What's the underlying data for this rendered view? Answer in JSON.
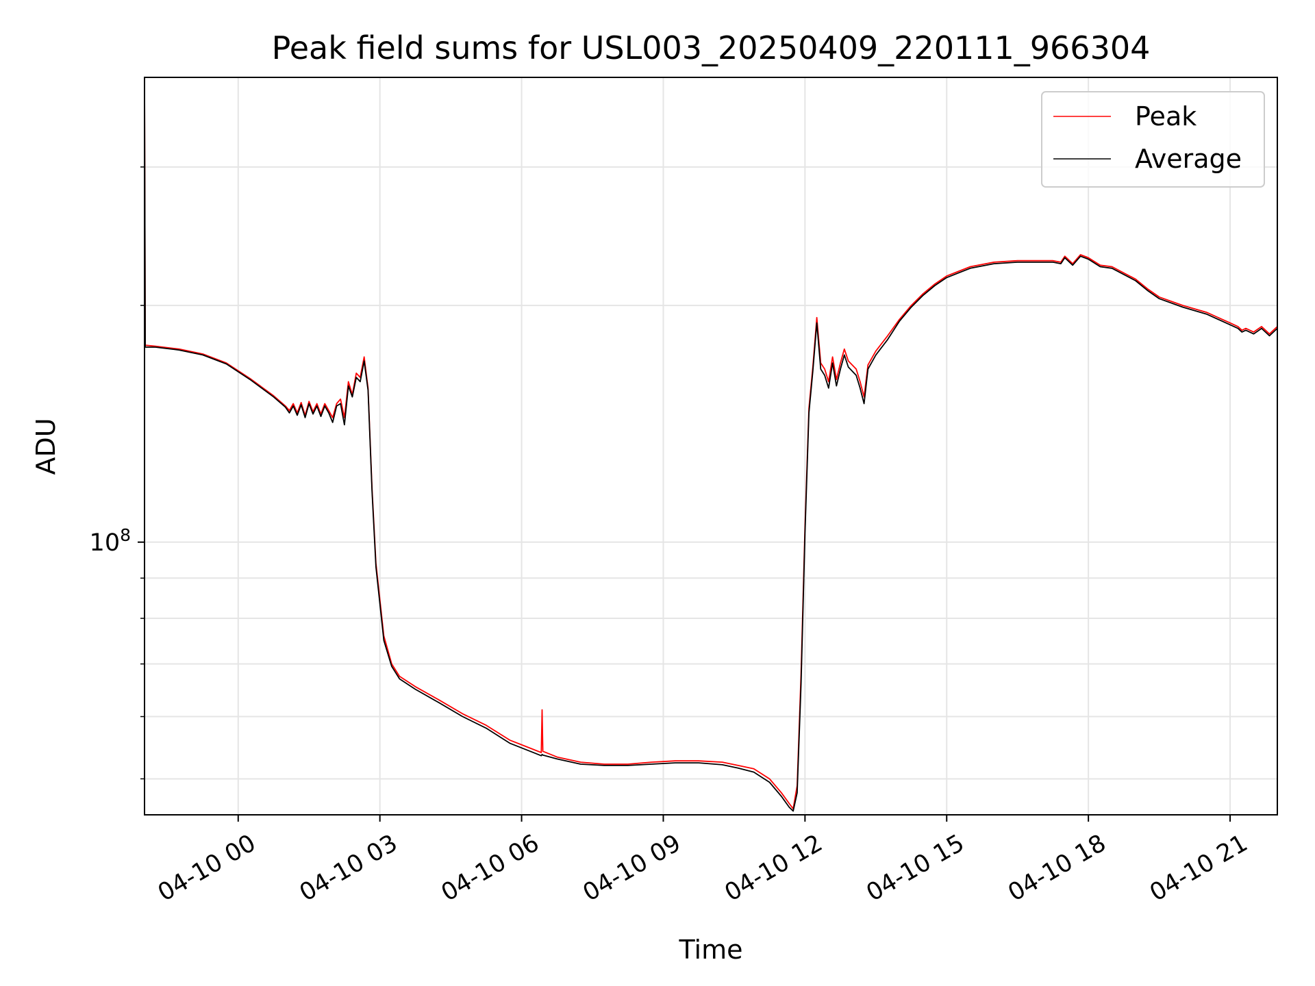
{
  "chart_data": {
    "type": "line",
    "title": "Peak field sums for USL003_20250409_220111_966304",
    "xlabel": "Time",
    "ylabel": "ADU",
    "yscale": "log",
    "grid": true,
    "legend": {
      "placement": "upper-right",
      "entries": [
        "Peak",
        "Average"
      ]
    },
    "xlim": [
      "2025-04-09 22:01",
      "2025-04-10 22:00"
    ],
    "ylim": [
      45000000.0,
      390000000.0
    ],
    "x_ticks": [
      "04-10 00",
      "04-10 03",
      "04-10 06",
      "04-10 09",
      "04-10 12",
      "04-10 15",
      "04-10 18",
      "04-10 21"
    ],
    "y_ticks": [
      {
        "value": 100000000.0,
        "base": "10",
        "exponent": "8"
      }
    ],
    "colors": {
      "Peak": "#ff0000",
      "Average": "#000000"
    },
    "series": [
      {
        "name": "Peak",
        "color": "#ff0000",
        "x": [
          "2025-04-09 22:01",
          "2025-04-09 22:02",
          "2025-04-09 22:15",
          "2025-04-09 22:45",
          "2025-04-09 23:15",
          "2025-04-09 23:45",
          "2025-04-10 00:15",
          "2025-04-10 00:45",
          "2025-04-10 01:00",
          "2025-04-10 01:05",
          "2025-04-10 01:10",
          "2025-04-10 01:15",
          "2025-04-10 01:20",
          "2025-04-10 01:25",
          "2025-04-10 01:30",
          "2025-04-10 01:35",
          "2025-04-10 01:40",
          "2025-04-10 01:45",
          "2025-04-10 01:50",
          "2025-04-10 01:55",
          "2025-04-10 02:00",
          "2025-04-10 02:05",
          "2025-04-10 02:10",
          "2025-04-10 02:15",
          "2025-04-10 02:20",
          "2025-04-10 02:25",
          "2025-04-10 02:30",
          "2025-04-10 02:35",
          "2025-04-10 02:40",
          "2025-04-10 02:45",
          "2025-04-10 02:50",
          "2025-04-10 02:55",
          "2025-04-10 03:05",
          "2025-04-10 03:15",
          "2025-04-10 03:25",
          "2025-04-10 03:45",
          "2025-04-10 04:15",
          "2025-04-10 04:45",
          "2025-04-10 05:15",
          "2025-04-10 05:45",
          "2025-04-10 06:15",
          "2025-04-10 06:25",
          "2025-04-10 06:26",
          "2025-04-10 06:27",
          "2025-04-10 06:45",
          "2025-04-10 07:15",
          "2025-04-10 07:45",
          "2025-04-10 08:15",
          "2025-04-10 08:45",
          "2025-04-10 09:15",
          "2025-04-10 09:45",
          "2025-04-10 10:15",
          "2025-04-10 10:35",
          "2025-04-10 10:55",
          "2025-04-10 11:15",
          "2025-04-10 11:30",
          "2025-04-10 11:40",
          "2025-04-10 11:45",
          "2025-04-10 11:50",
          "2025-04-10 11:55",
          "2025-04-10 12:00",
          "2025-04-10 12:05",
          "2025-04-10 12:10",
          "2025-04-10 12:15",
          "2025-04-10 12:20",
          "2025-04-10 12:25",
          "2025-04-10 12:30",
          "2025-04-10 12:35",
          "2025-04-10 12:40",
          "2025-04-10 12:45",
          "2025-04-10 12:50",
          "2025-04-10 12:55",
          "2025-04-10 13:00",
          "2025-04-10 13:05",
          "2025-04-10 13:10",
          "2025-04-10 13:15",
          "2025-04-10 13:20",
          "2025-04-10 13:30",
          "2025-04-10 13:45",
          "2025-04-10 14:00",
          "2025-04-10 14:15",
          "2025-04-10 14:30",
          "2025-04-10 14:45",
          "2025-04-10 15:00",
          "2025-04-10 15:30",
          "2025-04-10 16:00",
          "2025-04-10 16:30",
          "2025-04-10 17:00",
          "2025-04-10 17:15",
          "2025-04-10 17:25",
          "2025-04-10 17:30",
          "2025-04-10 17:40",
          "2025-04-10 17:50",
          "2025-04-10 18:00",
          "2025-04-10 18:15",
          "2025-04-10 18:30",
          "2025-04-10 19:00",
          "2025-04-10 19:15",
          "2025-04-10 19:30",
          "2025-04-10 20:00",
          "2025-04-10 20:30",
          "2025-04-10 21:00",
          "2025-04-10 21:10",
          "2025-04-10 21:15",
          "2025-04-10 21:20",
          "2025-04-10 21:30",
          "2025-04-10 21:40",
          "2025-04-10 21:50",
          "2025-04-10 22:00"
        ],
        "values": [
          390000000.0,
          178000000.0,
          177500000.0,
          176000000.0,
          173500000.0,
          169000000.0,
          161500000.0,
          153500000.0,
          149000000.0,
          147000000.0,
          150000000.0,
          146000000.0,
          150500000.0,
          145000000.0,
          151000000.0,
          146500000.0,
          150000000.0,
          145500000.0,
          150000000.0,
          147000000.0,
          144000000.0,
          150000000.0,
          152000000.0,
          144000000.0,
          160000000.0,
          154000000.0,
          164000000.0,
          162000000.0,
          172000000.0,
          157000000.0,
          117000000.0,
          94000000.0,
          76000000.0,
          70000000.0,
          67500000.0,
          65500000.0,
          63000000.0,
          60500000.0,
          58500000.0,
          56000000.0,
          54500000.0,
          54000000.0,
          61200000.0,
          54200000.0,
          53300000.0,
          52500000.0,
          52200000.0,
          52200000.0,
          52500000.0,
          52700000.0,
          52700000.0,
          52500000.0,
          52000000.0,
          51500000.0,
          50000000.0,
          48000000.0,
          46500000.0,
          45800000.0,
          49000000.0,
          68000000.0,
          105000000.0,
          148000000.0,
          167000000.0,
          193000000.0,
          169000000.0,
          166000000.0,
          160000000.0,
          172000000.0,
          161000000.0,
          169000000.0,
          176000000.0,
          170000000.0,
          168000000.0,
          166000000.0,
          160000000.0,
          153000000.0,
          168000000.0,
          175000000.0,
          183000000.0,
          192000000.0,
          200000000.0,
          207000000.0,
          213000000.0,
          218000000.0,
          224000000.0,
          227000000.0,
          228000000.0,
          228000000.0,
          228000000.0,
          227000000.0,
          231000000.0,
          226000000.0,
          232000000.0,
          230000000.0,
          225000000.0,
          224000000.0,
          216000000.0,
          210000000.0,
          205000000.0,
          200000000.0,
          196000000.0,
          190000000.0,
          188000000.0,
          186000000.0,
          187000000.0,
          185000000.0,
          188000000.0,
          184000000.0,
          188000000.0
        ]
      },
      {
        "name": "Average",
        "color": "#000000",
        "x": [
          "2025-04-09 22:01",
          "2025-04-09 22:02",
          "2025-04-09 22:15",
          "2025-04-09 22:45",
          "2025-04-09 23:15",
          "2025-04-09 23:45",
          "2025-04-10 00:15",
          "2025-04-10 00:45",
          "2025-04-10 01:00",
          "2025-04-10 01:05",
          "2025-04-10 01:10",
          "2025-04-10 01:15",
          "2025-04-10 01:20",
          "2025-04-10 01:25",
          "2025-04-10 01:30",
          "2025-04-10 01:35",
          "2025-04-10 01:40",
          "2025-04-10 01:45",
          "2025-04-10 01:50",
          "2025-04-10 01:55",
          "2025-04-10 02:00",
          "2025-04-10 02:05",
          "2025-04-10 02:10",
          "2025-04-10 02:15",
          "2025-04-10 02:20",
          "2025-04-10 02:25",
          "2025-04-10 02:30",
          "2025-04-10 02:35",
          "2025-04-10 02:40",
          "2025-04-10 02:45",
          "2025-04-10 02:50",
          "2025-04-10 02:55",
          "2025-04-10 03:05",
          "2025-04-10 03:15",
          "2025-04-10 03:25",
          "2025-04-10 03:45",
          "2025-04-10 04:15",
          "2025-04-10 04:45",
          "2025-04-10 05:15",
          "2025-04-10 05:45",
          "2025-04-10 06:15",
          "2025-04-10 06:25",
          "2025-04-10 06:26",
          "2025-04-10 06:27",
          "2025-04-10 06:45",
          "2025-04-10 07:15",
          "2025-04-10 07:45",
          "2025-04-10 08:15",
          "2025-04-10 08:45",
          "2025-04-10 09:15",
          "2025-04-10 09:45",
          "2025-04-10 10:15",
          "2025-04-10 10:35",
          "2025-04-10 10:55",
          "2025-04-10 11:15",
          "2025-04-10 11:30",
          "2025-04-10 11:40",
          "2025-04-10 11:45",
          "2025-04-10 11:50",
          "2025-04-10 11:55",
          "2025-04-10 12:00",
          "2025-04-10 12:05",
          "2025-04-10 12:10",
          "2025-04-10 12:15",
          "2025-04-10 12:20",
          "2025-04-10 12:25",
          "2025-04-10 12:30",
          "2025-04-10 12:35",
          "2025-04-10 12:40",
          "2025-04-10 12:45",
          "2025-04-10 12:50",
          "2025-04-10 12:55",
          "2025-04-10 13:00",
          "2025-04-10 13:05",
          "2025-04-10 13:10",
          "2025-04-10 13:15",
          "2025-04-10 13:20",
          "2025-04-10 13:30",
          "2025-04-10 13:45",
          "2025-04-10 14:00",
          "2025-04-10 14:15",
          "2025-04-10 14:30",
          "2025-04-10 14:45",
          "2025-04-10 15:00",
          "2025-04-10 15:30",
          "2025-04-10 16:00",
          "2025-04-10 16:30",
          "2025-04-10 17:00",
          "2025-04-10 17:15",
          "2025-04-10 17:25",
          "2025-04-10 17:30",
          "2025-04-10 17:40",
          "2025-04-10 17:50",
          "2025-04-10 18:00",
          "2025-04-10 18:15",
          "2025-04-10 18:30",
          "2025-04-10 19:00",
          "2025-04-10 19:15",
          "2025-04-10 19:30",
          "2025-04-10 20:00",
          "2025-04-10 20:30",
          "2025-04-10 21:00",
          "2025-04-10 21:10",
          "2025-04-10 21:15",
          "2025-04-10 21:20",
          "2025-04-10 21:30",
          "2025-04-10 21:40",
          "2025-04-10 21:50",
          "2025-04-10 22:00"
        ],
        "values": [
          390000000.0,
          177000000.0,
          177000000.0,
          175500000.0,
          173000000.0,
          168500000.0,
          161000000.0,
          153000000.0,
          148500000.0,
          146000000.0,
          149000000.0,
          145000000.0,
          149500000.0,
          144000000.0,
          150000000.0,
          145500000.0,
          149000000.0,
          144500000.0,
          149000000.0,
          146000000.0,
          142000000.0,
          149000000.0,
          150000000.0,
          141000000.0,
          158000000.0,
          153000000.0,
          162000000.0,
          160000000.0,
          170000000.0,
          156000000.0,
          116000000.0,
          93000000.0,
          75000000.0,
          69500000.0,
          67000000.0,
          65000000.0,
          62500000.0,
          60000000.0,
          58000000.0,
          55500000.0,
          54000000.0,
          53500000.0,
          53700000.0,
          53600000.0,
          53000000.0,
          52200000.0,
          52000000.0,
          52000000.0,
          52200000.0,
          52400000.0,
          52400000.0,
          52100000.0,
          51600000.0,
          51000000.0,
          49500000.0,
          47500000.0,
          46000000.0,
          45500000.0,
          48000000.0,
          66000000.0,
          103000000.0,
          146000000.0,
          165000000.0,
          190000000.0,
          166000000.0,
          163000000.0,
          157000000.0,
          169000000.0,
          158000000.0,
          166000000.0,
          173000000.0,
          167000000.0,
          165000000.0,
          163000000.0,
          157000000.0,
          150000000.0,
          166000000.0,
          173000000.0,
          181000000.0,
          191000000.0,
          199000000.0,
          206000000.0,
          212000000.0,
          217000000.0,
          223000000.0,
          226000000.0,
          227000000.0,
          227000000.0,
          227000000.0,
          226000000.0,
          230000000.0,
          225000000.0,
          231000000.0,
          229000000.0,
          224000000.0,
          223000000.0,
          215000000.0,
          209000000.0,
          204000000.0,
          199000000.0,
          195000000.0,
          189000000.0,
          187000000.0,
          185000000.0,
          186000000.0,
          184000000.0,
          187000000.0,
          183000000.0,
          187000000.0
        ]
      }
    ]
  }
}
